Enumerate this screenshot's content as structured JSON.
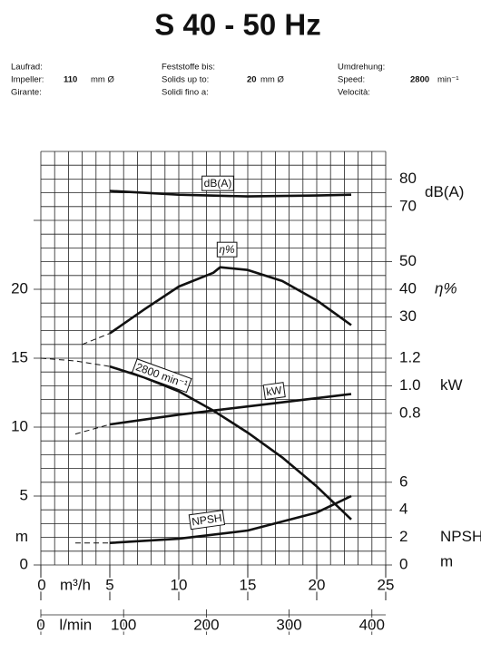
{
  "header": {
    "title": "S 40 - 50 Hz",
    "columns": [
      {
        "labels": [
          "Laufrad:",
          "Impeller:",
          "Girante:"
        ],
        "value": "110",
        "unit": "mm Ø"
      },
      {
        "labels": [
          "Feststoffe bis:",
          "Solids up to:",
          "Solidi fino a:"
        ],
        "value": "20",
        "unit": "mm Ø"
      },
      {
        "labels": [
          "Umdrehung:",
          "Speed:",
          "Velocità:"
        ],
        "value": "2800",
        "unit": "min⁻¹"
      }
    ]
  },
  "chart_data": {
    "type": "line",
    "xlabel": "m³/h",
    "xlim": [
      0,
      25
    ],
    "xticks": [
      0,
      5,
      10,
      15,
      20,
      25
    ],
    "x2label": "l/min",
    "x2lim": [
      0,
      416.7
    ],
    "x2ticks": [
      0,
      100,
      200,
      300,
      400
    ],
    "ylabel": "m",
    "ylim": [
      0,
      30
    ],
    "yticks": [
      0,
      5,
      10,
      15,
      20
    ],
    "grid": true,
    "right_axes": {
      "db": {
        "label": "dB(A)",
        "ylim": [
          70,
          80
        ],
        "yticks": [
          70,
          80
        ]
      },
      "eta": {
        "label": "η%",
        "ylim": [
          30,
          50
        ],
        "yticks": [
          30,
          40,
          50
        ]
      },
      "kw": {
        "label": "kW",
        "ylim": [
          0.8,
          1.2
        ],
        "yticks": [
          0.8,
          {
            "value": 1,
            "label": "1.0"
          },
          1.2
        ]
      },
      "npsh": {
        "label": "NPSH",
        "unit": "m",
        "ylim": [
          0,
          6
        ],
        "yticks": [
          0,
          2,
          4,
          6
        ]
      }
    },
    "series": [
      {
        "name": "dB(A)",
        "axis": "db",
        "style": "solid",
        "x": [
          5,
          10,
          15,
          20,
          22.5
        ],
        "values": [
          75.7,
          74.3,
          73.7,
          74,
          74.3
        ]
      },
      {
        "name": "η%",
        "axis": "eta",
        "style": "solid",
        "x": [
          5,
          7.5,
          10,
          12.5,
          13,
          15,
          17.5,
          20,
          22.5
        ],
        "values": [
          24,
          32.7,
          41,
          46,
          48,
          47,
          43,
          36,
          27
        ]
      },
      {
        "axis": "eta",
        "style": "dashed",
        "x": [
          3,
          5
        ],
        "values": [
          20,
          24
        ]
      },
      {
        "name": "2800 min⁻¹",
        "axis": "y",
        "style": "solid",
        "x": [
          5,
          7.5,
          10,
          12.5,
          15,
          17.5,
          20,
          22.5
        ],
        "values": [
          14.4,
          13.6,
          12.6,
          11.2,
          9.6,
          7.8,
          5.7,
          3.3
        ]
      },
      {
        "axis": "y",
        "style": "dashed",
        "x": [
          0,
          2.5,
          5
        ],
        "values": [
          15,
          14.8,
          14.4
        ]
      },
      {
        "name": "kW",
        "axis": "kw",
        "style": "solid",
        "x": [
          5,
          10,
          15,
          20,
          22.5
        ],
        "values": [
          0.72,
          0.79,
          0.85,
          0.91,
          0.94
        ]
      },
      {
        "axis": "kw",
        "style": "dashed",
        "x": [
          2.5,
          5
        ],
        "values": [
          0.65,
          0.72
        ]
      },
      {
        "name": "NPSH",
        "axis": "npsh",
        "style": "solid",
        "x": [
          5,
          10,
          15,
          20,
          22.5
        ],
        "values": [
          1.6,
          1.9,
          2.5,
          3.8,
          5
        ]
      },
      {
        "axis": "npsh",
        "style": "dashed",
        "x": [
          2.5,
          5
        ],
        "values": [
          1.6,
          1.6
        ]
      }
    ]
  }
}
